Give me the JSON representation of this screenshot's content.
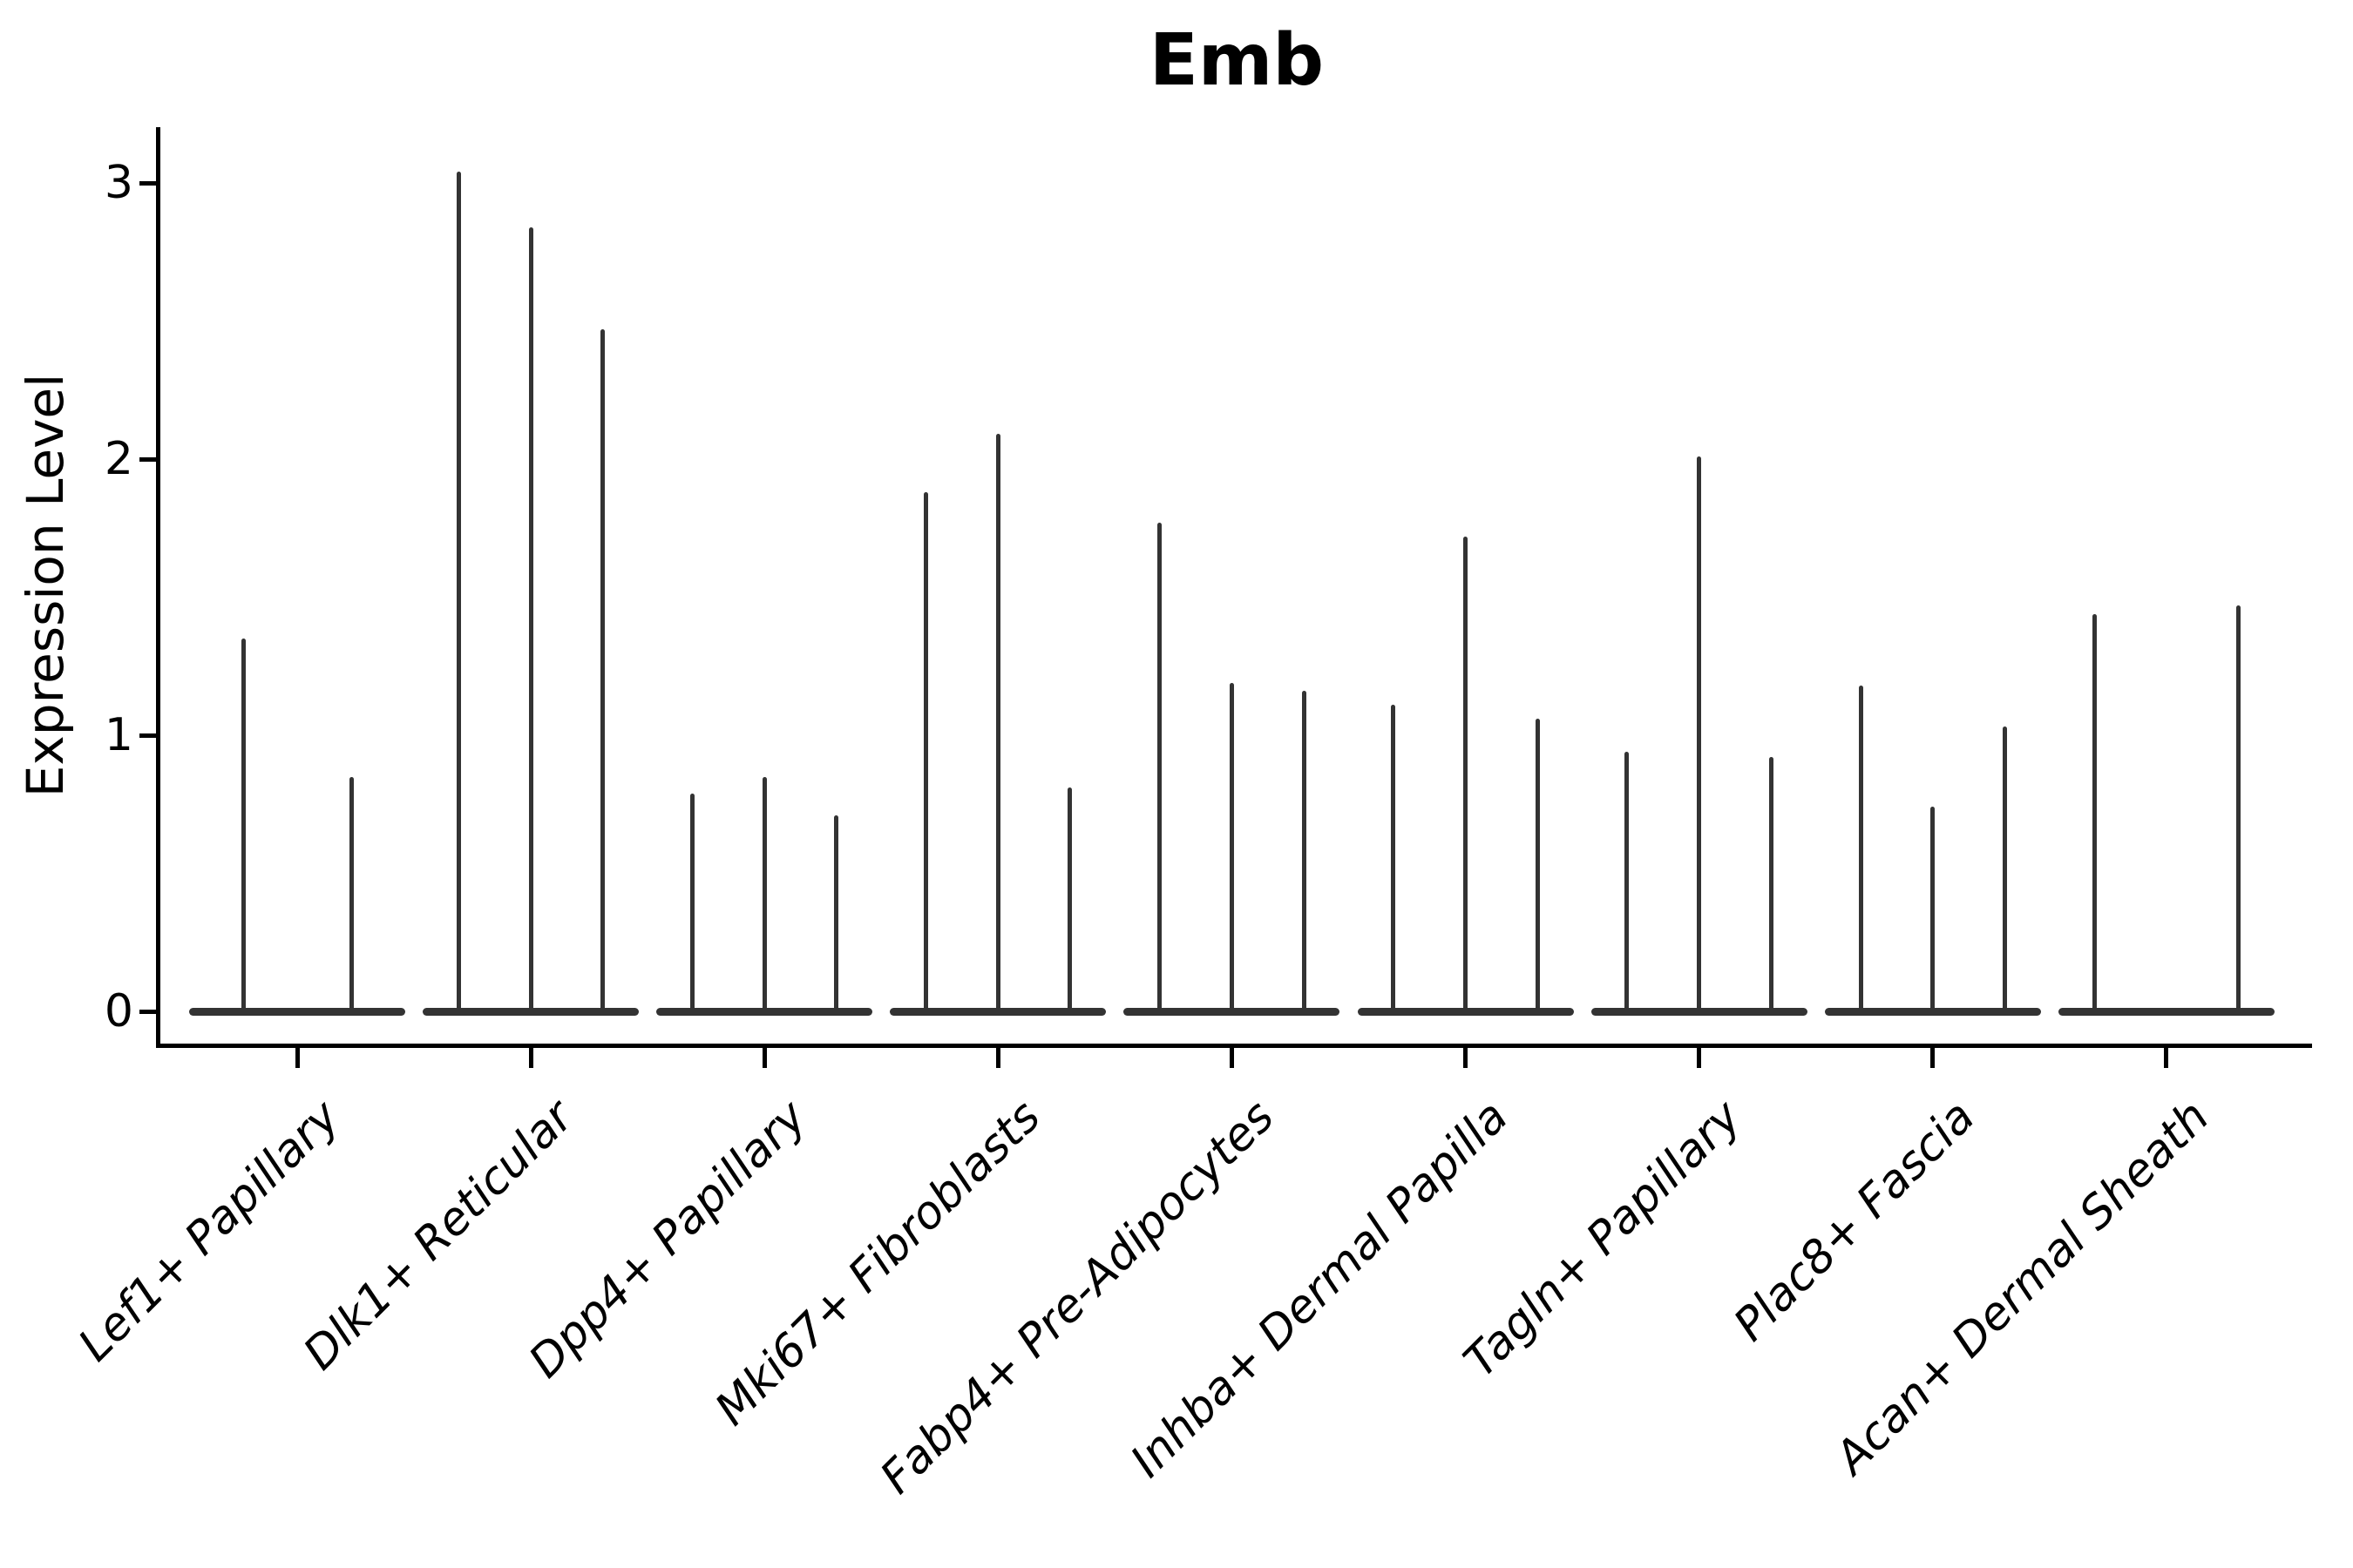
{
  "chart_data": {
    "type": "violin",
    "title": "Emb",
    "ylabel": "Expression Level",
    "xlabel": "",
    "grid": false,
    "legend": null,
    "ylim": [
      -0.13,
      3.2
    ],
    "yticks": [
      0,
      1,
      2,
      3
    ],
    "ytick_labels": [
      "0",
      "1",
      "2",
      "3"
    ],
    "style": {
      "violin_color": "#333333",
      "axis_color": "#000000",
      "text_color": "#000000",
      "background": "#ffffff"
    },
    "categories": [
      {
        "label": "Lef1+ Papillary",
        "slots": 2,
        "spikes": [
          {
            "slot": 0,
            "value": 1.35
          },
          {
            "slot": 1,
            "value": 0.85
          }
        ]
      },
      {
        "label": "Dlk1+ Reticular",
        "slots": 3,
        "spikes": [
          {
            "slot": 0,
            "value": 3.04
          },
          {
            "slot": 1,
            "value": 2.84
          },
          {
            "slot": 2,
            "value": 2.47
          }
        ]
      },
      {
        "label": "Dpp4+ Papillary",
        "slots": 3,
        "spikes": [
          {
            "slot": 0,
            "value": 0.79
          },
          {
            "slot": 1,
            "value": 0.85
          },
          {
            "slot": 2,
            "value": 0.71
          }
        ]
      },
      {
        "label": "Mki67+ Fibroblasts",
        "slots": 3,
        "spikes": [
          {
            "slot": 0,
            "value": 1.88
          },
          {
            "slot": 1,
            "value": 2.09
          },
          {
            "slot": 2,
            "value": 0.81
          }
        ]
      },
      {
        "label": "Fabp4+ Pre-Adipocytes",
        "slots": 3,
        "spikes": [
          {
            "slot": 0,
            "value": 1.77
          },
          {
            "slot": 1,
            "value": 1.19
          },
          {
            "slot": 2,
            "value": 1.16
          }
        ]
      },
      {
        "label": "Inhba+ Dermal Papilla",
        "slots": 3,
        "spikes": [
          {
            "slot": 0,
            "value": 1.11
          },
          {
            "slot": 1,
            "value": 1.72
          },
          {
            "slot": 2,
            "value": 1.06
          }
        ]
      },
      {
        "label": "Tagln+ Papillary",
        "slots": 3,
        "spikes": [
          {
            "slot": 0,
            "value": 0.94
          },
          {
            "slot": 1,
            "value": 2.01
          },
          {
            "slot": 2,
            "value": 0.92
          }
        ]
      },
      {
        "label": "Plac8+ Fascia",
        "slots": 3,
        "spikes": [
          {
            "slot": 0,
            "value": 1.18
          },
          {
            "slot": 1,
            "value": 0.74
          },
          {
            "slot": 2,
            "value": 1.03
          }
        ]
      },
      {
        "label": "Acan+ Dermal Sheath",
        "slots": 3,
        "spikes": [
          {
            "slot": 0,
            "value": 1.44
          },
          {
            "slot": 2,
            "value": 1.47
          }
        ]
      }
    ]
  }
}
